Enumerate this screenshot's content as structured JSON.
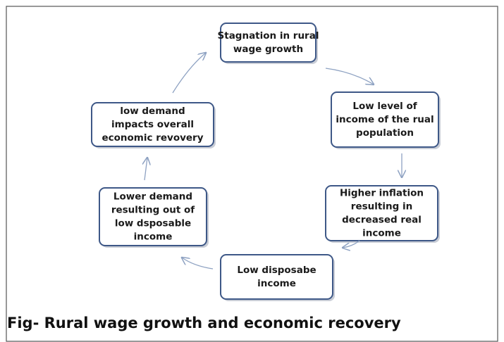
{
  "nodes": [
    {
      "lines": [
        "Stagnation in rural",
        "wage growth"
      ]
    },
    {
      "lines": [
        "Low level of",
        "income of the rual",
        "population"
      ]
    },
    {
      "lines": [
        "Higher inflation",
        "resulting in",
        "decreased real",
        "income"
      ]
    },
    {
      "lines": [
        "Low disposabe",
        "income"
      ]
    },
    {
      "lines": [
        "Lower demand",
        "resulting out of",
        "low dsposable",
        "income"
      ]
    },
    {
      "lines": [
        "low demand",
        "impacts overall",
        "economic revovery"
      ]
    }
  ],
  "caption": "Fig- Rural wage growth and economic recovery"
}
